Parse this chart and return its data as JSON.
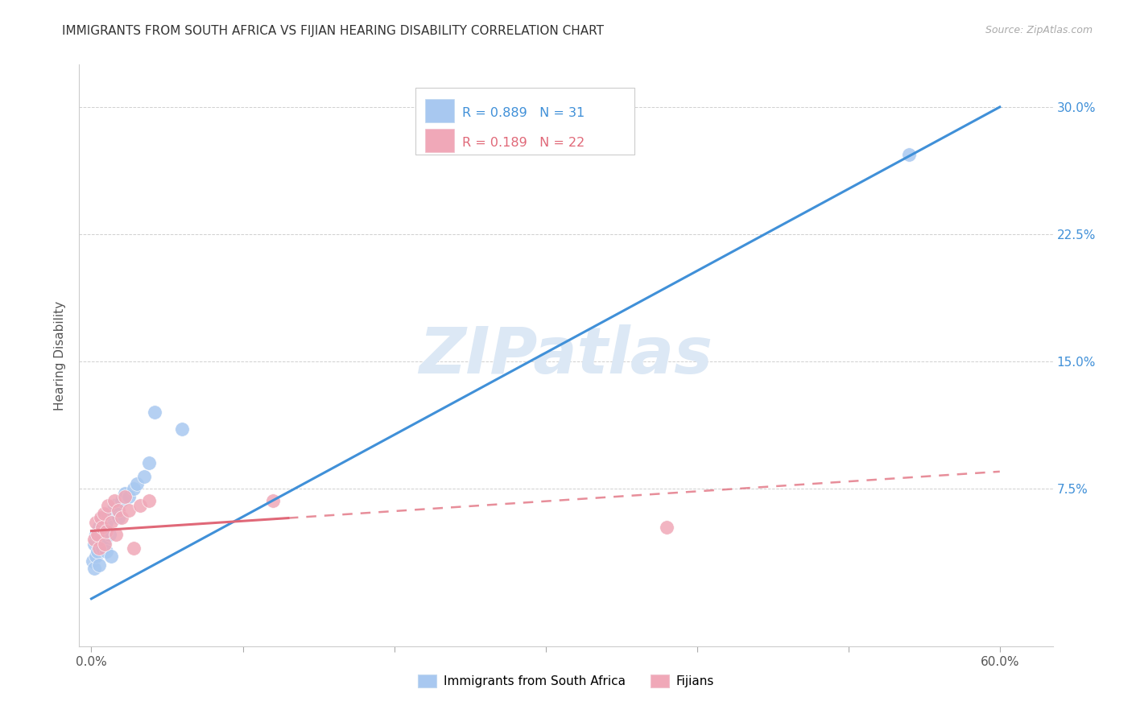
{
  "title": "IMMIGRANTS FROM SOUTH AFRICA VS FIJIAN HEARING DISABILITY CORRELATION CHART",
  "source": "Source: ZipAtlas.com",
  "ylabel": "Hearing Disability",
  "ytick_labels": [
    "",
    "7.5%",
    "15.0%",
    "22.5%",
    "30.0%"
  ],
  "ytick_values": [
    0.0,
    0.075,
    0.15,
    0.225,
    0.3
  ],
  "xtick_values": [
    0.0,
    0.1,
    0.2,
    0.3,
    0.4,
    0.5,
    0.6
  ],
  "xlim": [
    -0.008,
    0.635
  ],
  "ylim": [
    -0.018,
    0.325
  ],
  "r_blue": 0.889,
  "n_blue": 31,
  "r_pink": 0.189,
  "n_pink": 22,
  "blue_color": "#a8c8f0",
  "pink_color": "#f0a8b8",
  "blue_line_color": "#4090d8",
  "pink_line_color": "#e06878",
  "grid_color": "#d0d0d0",
  "watermark_color": "#dce8f5",
  "legend_label_blue": "Immigrants from South Africa",
  "legend_label_pink": "Fijians",
  "blue_scatter_x": [
    0.001,
    0.002,
    0.002,
    0.003,
    0.003,
    0.004,
    0.005,
    0.005,
    0.006,
    0.007,
    0.007,
    0.008,
    0.009,
    0.01,
    0.01,
    0.011,
    0.012,
    0.013,
    0.015,
    0.016,
    0.018,
    0.02,
    0.022,
    0.025,
    0.028,
    0.03,
    0.035,
    0.038,
    0.042,
    0.06,
    0.54
  ],
  "blue_scatter_y": [
    0.032,
    0.028,
    0.042,
    0.035,
    0.048,
    0.038,
    0.03,
    0.052,
    0.045,
    0.04,
    0.058,
    0.05,
    0.044,
    0.055,
    0.038,
    0.06,
    0.048,
    0.035,
    0.065,
    0.06,
    0.058,
    0.068,
    0.072,
    0.07,
    0.075,
    0.078,
    0.082,
    0.09,
    0.12,
    0.11,
    0.272
  ],
  "pink_scatter_x": [
    0.002,
    0.003,
    0.004,
    0.005,
    0.006,
    0.007,
    0.008,
    0.009,
    0.01,
    0.011,
    0.013,
    0.015,
    0.016,
    0.018,
    0.02,
    0.022,
    0.025,
    0.028,
    0.032,
    0.038,
    0.12,
    0.38
  ],
  "pink_scatter_y": [
    0.045,
    0.055,
    0.048,
    0.04,
    0.058,
    0.052,
    0.06,
    0.042,
    0.05,
    0.065,
    0.055,
    0.068,
    0.048,
    0.062,
    0.058,
    0.07,
    0.062,
    0.04,
    0.065,
    0.068,
    0.068,
    0.052
  ]
}
